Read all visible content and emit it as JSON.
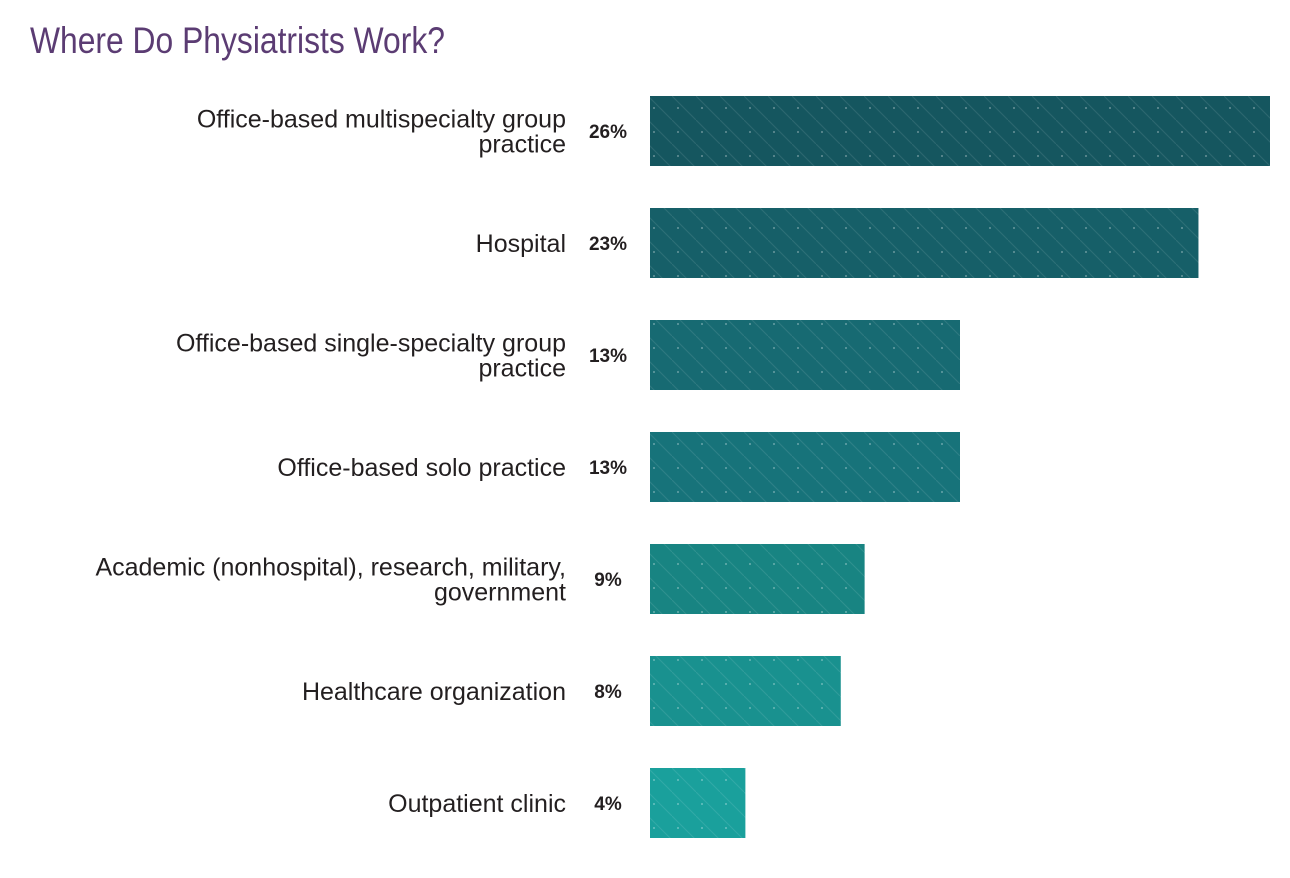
{
  "chart_data": {
    "type": "bar",
    "orientation": "horizontal",
    "title": "Where Do Physiatrists Work?",
    "xlabel": "",
    "ylabel": "",
    "categories": [
      "Office-based multispecialty group practice",
      "Hospital",
      "Office-based single-specialty group practice",
      "Office-based solo practice",
      "Academic (nonhospital), research, military, government",
      "Healthcare organization",
      "Outpatient clinic"
    ],
    "category_lines": [
      [
        "Office-based multispecialty group",
        "practice"
      ],
      [
        "Hospital"
      ],
      [
        "Office-based single-specialty group",
        "practice"
      ],
      [
        "Office-based solo practice"
      ],
      [
        "Academic (nonhospital), research, military,",
        "government"
      ],
      [
        "Healthcare organization"
      ],
      [
        "Outpatient clinic"
      ]
    ],
    "values": [
      26,
      23,
      13,
      13,
      9,
      8,
      4
    ],
    "value_labels": [
      "26%",
      "23%",
      "13%",
      "13%",
      "9%",
      "8%",
      "4%"
    ],
    "xlim": [
      0,
      26
    ],
    "grid": false,
    "legend": "none",
    "colors": [
      "#15565f",
      "#165f68",
      "#176a72",
      "#17737a",
      "#188482",
      "#19918f",
      "#1aa09c"
    ]
  }
}
